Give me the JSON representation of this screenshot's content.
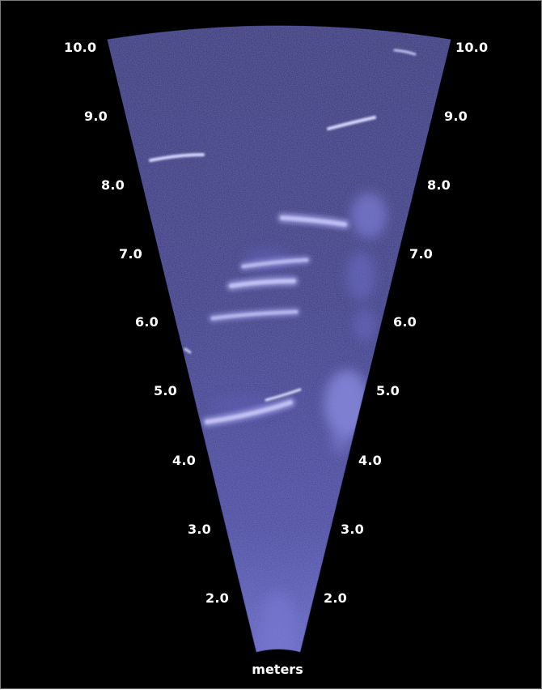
{
  "scale_labels_left": [
    "10.0",
    "9.0",
    "8.0",
    "7.0",
    "6.0",
    "5.0",
    "4.0",
    "3.0",
    "2.0"
  ],
  "scale_labels_right": [
    "10.0",
    "9.0",
    "8.0",
    "7.0",
    "6.0",
    "5.0",
    "4.0",
    "3.0",
    "2.0"
  ],
  "unit": "meters",
  "colors": {
    "background": "#000000",
    "sonar_fill": "#3f3f92",
    "echo_highlight": "#e6e6ff",
    "label": "#ffffff"
  }
}
